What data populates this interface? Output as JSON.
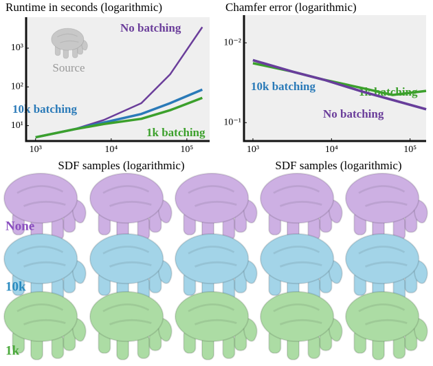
{
  "chart_data": [
    {
      "type": "line",
      "title": "Runtime in seconds (logarithmic)",
      "x_label": "SDF samples (logarithmic)",
      "annotations": [
        "Source"
      ],
      "x": [
        1000,
        3200,
        8000,
        25000,
        60000,
        160000
      ],
      "series": [
        {
          "name": "No batching",
          "color": "#6a3d9a",
          "values": [
            5,
            8,
            14,
            38,
            210,
            3500
          ]
        },
        {
          "name": "10k batching",
          "color": "#2a7ab8",
          "values": [
            5,
            8,
            12,
            20,
            38,
            85
          ]
        },
        {
          "name": "1k batching",
          "color": "#3ca02c",
          "values": [
            5,
            8,
            11,
            15,
            25,
            52
          ]
        }
      ],
      "xlim": [
        750,
        200000
      ],
      "xticks": [
        {
          "value": 1000,
          "label": "10³"
        },
        {
          "value": 10000,
          "label": "10⁴"
        },
        {
          "value": 100000,
          "label": "10⁵"
        }
      ],
      "ylim": [
        4,
        6300
      ],
      "yticks": [
        {
          "value": 10,
          "label": "10¹"
        },
        {
          "value": 100,
          "label": "10²"
        },
        {
          "value": 1000,
          "label": "10³"
        }
      ],
      "log_x": true,
      "log_y": true
    },
    {
      "type": "line",
      "title": "Chamfer error (logarithmic)",
      "x_label": "SDF samples (logarithmic)",
      "x": [
        1000,
        3200,
        8000,
        25000,
        60000,
        160000
      ],
      "series": [
        {
          "name": "1k batching",
          "color": "#3ca02c",
          "values": [
            0.018,
            0.023,
            0.029,
            0.037,
            0.045,
            0.04
          ]
        },
        {
          "name": "10k batching",
          "color": "#2a7ab8",
          "values": [
            0.0165,
            0.023,
            0.029,
            0.041,
            0.052,
            0.068
          ]
        },
        {
          "name": "No batching",
          "color": "#6a3d9a",
          "values": [
            0.0165,
            0.023,
            0.029,
            0.041,
            0.052,
            0.068
          ]
        }
      ],
      "xlim": [
        770,
        160000
      ],
      "xticks": [
        {
          "value": 1000,
          "label": "10³"
        },
        {
          "value": 10000,
          "label": "10⁴"
        },
        {
          "value": 100000,
          "label": "10⁵"
        }
      ],
      "ylim": [
        0.17,
        0.0045
      ],
      "yticks": [
        {
          "value": 0.01,
          "label": "10⁻²"
        },
        {
          "value": 0.1,
          "label": "10⁻¹"
        }
      ],
      "log_x": true,
      "log_y": true
    }
  ],
  "renders": {
    "rows": [
      {
        "label": "None",
        "color": "#8a4fbf",
        "fill": "#cdb0e3"
      },
      {
        "label": "10k",
        "color": "#2a8bc0",
        "fill": "#a3d4e8"
      },
      {
        "label": "1k",
        "color": "#4aa83a",
        "fill": "#acdca4"
      }
    ]
  }
}
